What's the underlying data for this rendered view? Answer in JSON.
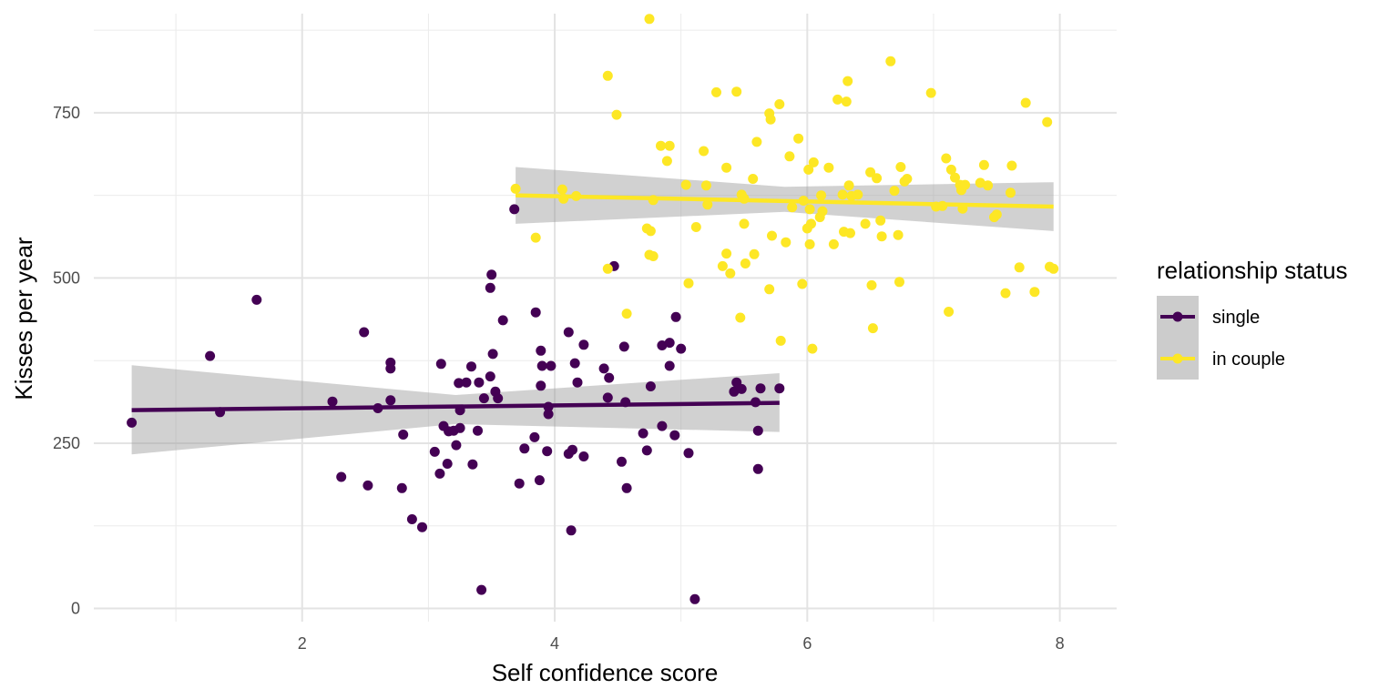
{
  "chart_data": {
    "type": "scatter",
    "xlabel": "Self confidence score",
    "ylabel": "Kisses per year",
    "xlim": [
      0.35,
      8.45
    ],
    "ylim": [
      -20,
      900
    ],
    "x_ticks": [
      2,
      4,
      6,
      8
    ],
    "y_ticks": [
      0,
      250,
      500,
      750
    ],
    "x_tick_labels": [
      "2",
      "4",
      "6",
      "8"
    ],
    "y_tick_labels": [
      "0",
      "250",
      "500",
      "750"
    ],
    "x_minor_gridlines": [
      1,
      3,
      5,
      7
    ],
    "y_minor_gridlines": [
      125,
      375,
      625,
      875
    ],
    "grid": true,
    "legend": {
      "title": "relationship status",
      "position": "right",
      "entries": [
        "single",
        "in couple"
      ]
    },
    "series": [
      {
        "name": "single",
        "color": "#440154",
        "points": [
          [
            0.65,
            281
          ],
          [
            1.27,
            382
          ],
          [
            1.35,
            297
          ],
          [
            1.64,
            467
          ],
          [
            2.24,
            313
          ],
          [
            2.31,
            199
          ],
          [
            2.49,
            418
          ],
          [
            2.52,
            186
          ],
          [
            2.6,
            303
          ],
          [
            2.7,
            372
          ],
          [
            2.7,
            363
          ],
          [
            2.7,
            315
          ],
          [
            2.79,
            182
          ],
          [
            2.8,
            263
          ],
          [
            2.87,
            135
          ],
          [
            2.95,
            123
          ],
          [
            3.05,
            237
          ],
          [
            3.09,
            204
          ],
          [
            3.1,
            370
          ],
          [
            3.12,
            276
          ],
          [
            3.15,
            219
          ],
          [
            3.16,
            268
          ],
          [
            3.2,
            269
          ],
          [
            3.22,
            247
          ],
          [
            3.24,
            341
          ],
          [
            3.25,
            300
          ],
          [
            3.25,
            273
          ],
          [
            3.3,
            342
          ],
          [
            3.34,
            366
          ],
          [
            3.35,
            218
          ],
          [
            3.39,
            269
          ],
          [
            3.4,
            342
          ],
          [
            3.42,
            28
          ],
          [
            3.44,
            318
          ],
          [
            3.49,
            485
          ],
          [
            3.49,
            351
          ],
          [
            3.5,
            505
          ],
          [
            3.51,
            385
          ],
          [
            3.53,
            328
          ],
          [
            3.55,
            318
          ],
          [
            3.59,
            436
          ],
          [
            3.68,
            604
          ],
          [
            3.72,
            189
          ],
          [
            3.76,
            242
          ],
          [
            3.84,
            259
          ],
          [
            3.85,
            448
          ],
          [
            3.88,
            194
          ],
          [
            3.89,
            390
          ],
          [
            3.89,
            337
          ],
          [
            3.9,
            367
          ],
          [
            3.94,
            238
          ],
          [
            3.95,
            294
          ],
          [
            3.95,
            305
          ],
          [
            3.97,
            367
          ],
          [
            4.11,
            234
          ],
          [
            4.11,
            418
          ],
          [
            4.13,
            118
          ],
          [
            4.14,
            240
          ],
          [
            4.16,
            371
          ],
          [
            4.18,
            342
          ],
          [
            4.23,
            399
          ],
          [
            4.23,
            230
          ],
          [
            4.39,
            363
          ],
          [
            4.42,
            319
          ],
          [
            4.43,
            349
          ],
          [
            4.47,
            518
          ],
          [
            4.53,
            222
          ],
          [
            4.55,
            396
          ],
          [
            4.56,
            312
          ],
          [
            4.57,
            182
          ],
          [
            4.7,
            265
          ],
          [
            4.73,
            239
          ],
          [
            4.76,
            336
          ],
          [
            4.85,
            398
          ],
          [
            4.85,
            276
          ],
          [
            4.91,
            367
          ],
          [
            4.91,
            402
          ],
          [
            4.95,
            262
          ],
          [
            4.96,
            441
          ],
          [
            5.0,
            393
          ],
          [
            5.06,
            235
          ],
          [
            5.11,
            14
          ],
          [
            5.42,
            328
          ],
          [
            5.44,
            342
          ],
          [
            5.48,
            332
          ],
          [
            5.59,
            312
          ],
          [
            5.61,
            269
          ],
          [
            5.61,
            211
          ],
          [
            5.63,
            333
          ],
          [
            5.78,
            333
          ]
        ],
        "fit": {
          "x_range": [
            0.65,
            5.78
          ],
          "y_start": 300,
          "y_end": 311,
          "ci_start": [
            233,
            368
          ],
          "ci_mid": [
            279,
            323
          ],
          "ci_end": [
            267,
            356
          ]
        }
      },
      {
        "name": "in couple",
        "color": "#fde725",
        "points": [
          [
            3.69,
            635
          ],
          [
            3.85,
            561
          ],
          [
            4.06,
            634
          ],
          [
            4.07,
            620
          ],
          [
            4.17,
            624
          ],
          [
            4.42,
            514
          ],
          [
            4.42,
            806
          ],
          [
            4.49,
            747
          ],
          [
            4.57,
            446
          ],
          [
            4.73,
            575
          ],
          [
            4.75,
            535
          ],
          [
            4.75,
            892
          ],
          [
            4.76,
            571
          ],
          [
            4.78,
            618
          ],
          [
            4.78,
            533
          ],
          [
            4.84,
            700
          ],
          [
            4.89,
            677
          ],
          [
            4.91,
            700
          ],
          [
            5.04,
            641
          ],
          [
            5.06,
            492
          ],
          [
            5.12,
            577
          ],
          [
            5.18,
            692
          ],
          [
            5.2,
            640
          ],
          [
            5.21,
            611
          ],
          [
            5.28,
            781
          ],
          [
            5.33,
            518
          ],
          [
            5.36,
            667
          ],
          [
            5.36,
            537
          ],
          [
            5.39,
            507
          ],
          [
            5.44,
            782
          ],
          [
            5.47,
            440
          ],
          [
            5.48,
            626
          ],
          [
            5.5,
            620
          ],
          [
            5.5,
            582
          ],
          [
            5.51,
            522
          ],
          [
            5.57,
            650
          ],
          [
            5.58,
            536
          ],
          [
            5.6,
            706
          ],
          [
            5.7,
            483
          ],
          [
            5.7,
            749
          ],
          [
            5.71,
            740
          ],
          [
            5.72,
            564
          ],
          [
            5.78,
            763
          ],
          [
            5.79,
            405
          ],
          [
            5.83,
            554
          ],
          [
            5.86,
            684
          ],
          [
            5.88,
            607
          ],
          [
            5.93,
            711
          ],
          [
            5.96,
            491
          ],
          [
            5.97,
            617
          ],
          [
            6.0,
            575
          ],
          [
            6.01,
            664
          ],
          [
            6.02,
            604
          ],
          [
            6.02,
            551
          ],
          [
            6.03,
            582
          ],
          [
            6.04,
            393
          ],
          [
            6.05,
            675
          ],
          [
            6.1,
            592
          ],
          [
            6.11,
            625
          ],
          [
            6.12,
            601
          ],
          [
            6.17,
            667
          ],
          [
            6.21,
            551
          ],
          [
            6.24,
            770
          ],
          [
            6.28,
            626
          ],
          [
            6.29,
            570
          ],
          [
            6.31,
            767
          ],
          [
            6.32,
            798
          ],
          [
            6.33,
            640
          ],
          [
            6.34,
            568
          ],
          [
            6.35,
            624
          ],
          [
            6.4,
            626
          ],
          [
            6.46,
            582
          ],
          [
            6.5,
            660
          ],
          [
            6.51,
            489
          ],
          [
            6.52,
            424
          ],
          [
            6.55,
            651
          ],
          [
            6.58,
            587
          ],
          [
            6.59,
            563
          ],
          [
            6.66,
            828
          ],
          [
            6.69,
            632
          ],
          [
            6.72,
            565
          ],
          [
            6.73,
            494
          ],
          [
            6.74,
            668
          ],
          [
            6.77,
            646
          ],
          [
            6.79,
            650
          ],
          [
            6.98,
            780
          ],
          [
            7.02,
            608
          ],
          [
            7.07,
            609
          ],
          [
            7.1,
            681
          ],
          [
            7.12,
            449
          ],
          [
            7.14,
            664
          ],
          [
            7.17,
            652
          ],
          [
            7.21,
            641
          ],
          [
            7.22,
            633
          ],
          [
            7.23,
            605
          ],
          [
            7.25,
            641
          ],
          [
            7.37,
            644
          ],
          [
            7.4,
            671
          ],
          [
            7.43,
            640
          ],
          [
            7.48,
            592
          ],
          [
            7.5,
            596
          ],
          [
            7.57,
            477
          ],
          [
            7.61,
            629
          ],
          [
            7.62,
            670
          ],
          [
            7.68,
            516
          ],
          [
            7.73,
            765
          ],
          [
            7.8,
            479
          ],
          [
            7.9,
            736
          ],
          [
            7.92,
            517
          ],
          [
            7.95,
            514
          ]
        ],
        "fit": {
          "x_range": [
            3.69,
            7.95
          ],
          "y_start": 625,
          "y_end": 608,
          "ci_start": [
            582,
            668
          ],
          "ci_mid": [
            600,
            638
          ],
          "ci_end": [
            571,
            645
          ]
        }
      }
    ]
  }
}
